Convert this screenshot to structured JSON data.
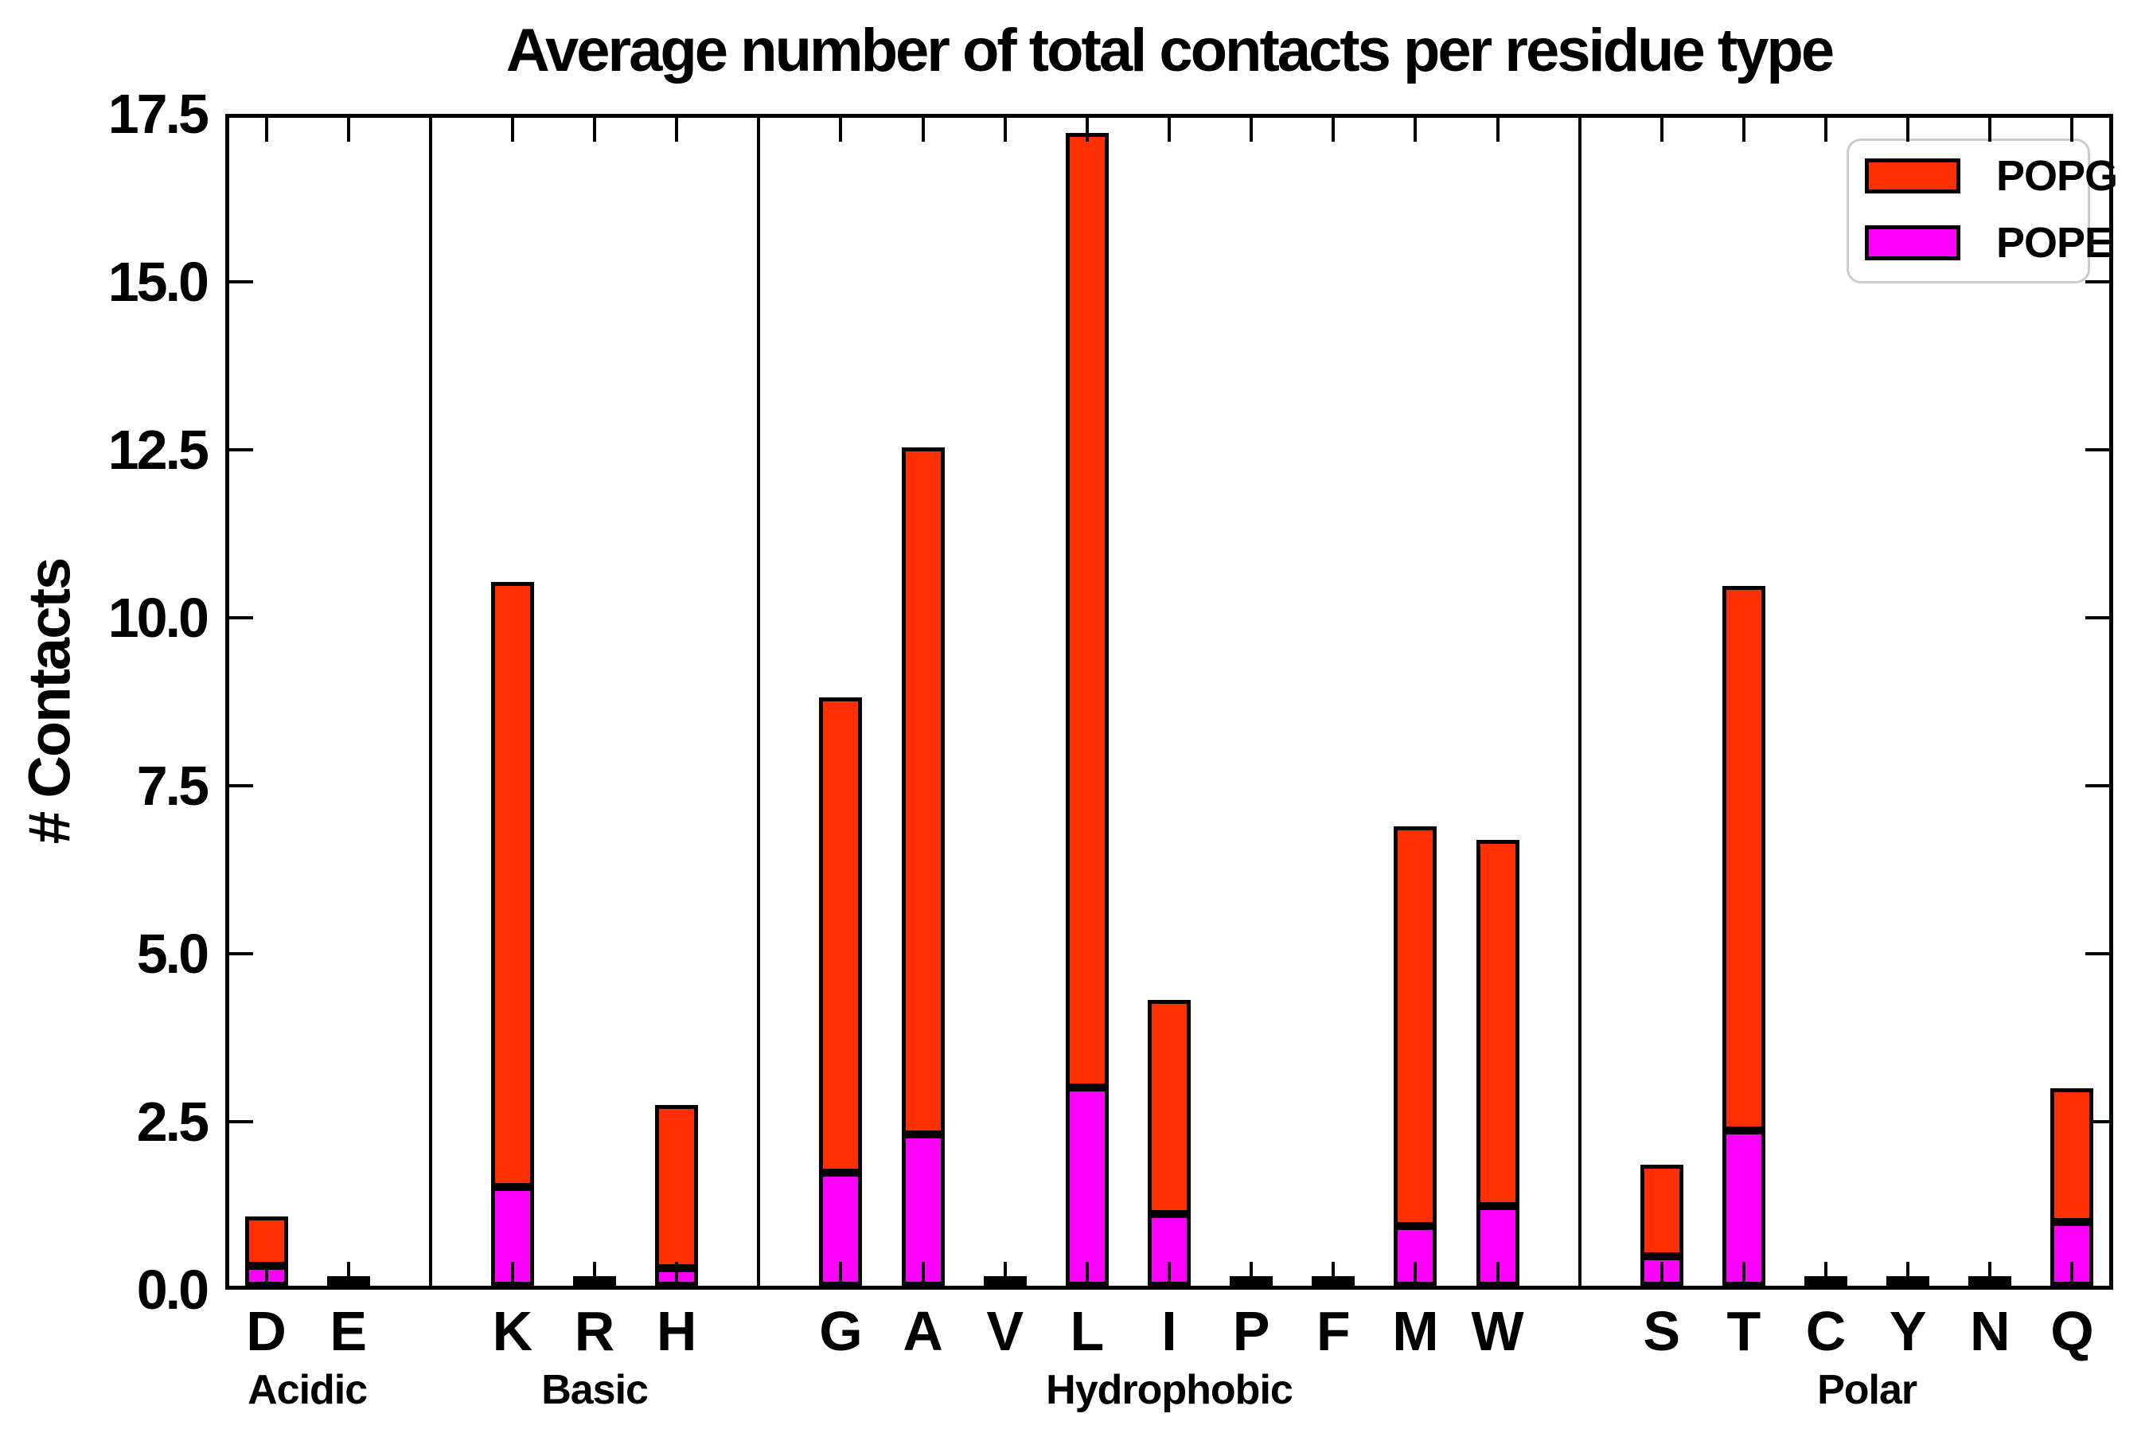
{
  "title": "Average number of total contacts per residue type",
  "ylabel": "# Contacts",
  "legend": [
    {
      "label": "POPG",
      "color": "#ff3000"
    },
    {
      "label": "POPE",
      "color": "#ff00ff"
    }
  ],
  "chart_data": {
    "type": "bar",
    "stacked": true,
    "ylim": [
      0,
      17.5
    ],
    "ytick_labels": [
      "0.0",
      "2.5",
      "5.0",
      "7.5",
      "10.0",
      "12.5",
      "15.0",
      "17.5"
    ],
    "yticks": [
      0,
      2.5,
      5,
      7.5,
      10,
      12.5,
      15,
      17.5
    ],
    "grid": false,
    "legend_position": "upper right",
    "series_order_bottom_to_top": [
      "POPE",
      "POPG"
    ],
    "colors": {
      "POPG": "#ff3000",
      "POPE": "#ff00ff"
    },
    "groups": [
      {
        "name": "Acidic",
        "bars": [
          {
            "label": "D",
            "POPE": 0.3,
            "POPG": 0.73,
            "total": 1.03
          },
          {
            "label": "E",
            "POPE": 0.01,
            "POPG": 0.03,
            "total": 0.04
          }
        ]
      },
      {
        "name": "Basic",
        "bars": [
          {
            "label": "K",
            "POPE": 1.47,
            "POPG": 9.0,
            "total": 10.47
          },
          {
            "label": "R",
            "POPE": 0.01,
            "POPG": 0.03,
            "total": 0.04
          },
          {
            "label": "H",
            "POPE": 0.26,
            "POPG": 2.43,
            "total": 2.69
          }
        ]
      },
      {
        "name": "Hydrophobic",
        "bars": [
          {
            "label": "G",
            "POPE": 1.68,
            "POPG": 7.08,
            "total": 8.76
          },
          {
            "label": "A",
            "POPE": 2.25,
            "POPG": 10.23,
            "total": 12.48
          },
          {
            "label": "V",
            "POPE": 0.01,
            "POPG": 0.03,
            "total": 0.04
          },
          {
            "label": "L",
            "POPE": 2.95,
            "POPG": 14.21,
            "total": 17.16
          },
          {
            "label": "I",
            "POPE": 1.07,
            "POPG": 3.18,
            "total": 4.25
          },
          {
            "label": "P",
            "POPE": 0.01,
            "POPG": 0.03,
            "total": 0.04
          },
          {
            "label": "F",
            "POPE": 0.01,
            "POPG": 0.03,
            "total": 0.04
          },
          {
            "label": "M",
            "POPE": 0.89,
            "POPG": 5.95,
            "total": 6.84
          },
          {
            "label": "W",
            "POPE": 1.18,
            "POPG": 5.46,
            "total": 6.64
          }
        ]
      },
      {
        "name": "Polar",
        "bars": [
          {
            "label": "S",
            "POPE": 0.44,
            "POPG": 1.36,
            "total": 1.8
          },
          {
            "label": "T",
            "POPE": 2.31,
            "POPG": 8.1,
            "total": 10.41
          },
          {
            "label": "C",
            "POPE": 0.01,
            "POPG": 0.03,
            "total": 0.04
          },
          {
            "label": "Y",
            "POPE": 0.01,
            "POPG": 0.03,
            "total": 0.04
          },
          {
            "label": "N",
            "POPE": 0.01,
            "POPG": 0.03,
            "total": 0.04
          },
          {
            "label": "Q",
            "POPE": 0.95,
            "POPG": 1.99,
            "total": 2.94
          }
        ]
      }
    ]
  }
}
